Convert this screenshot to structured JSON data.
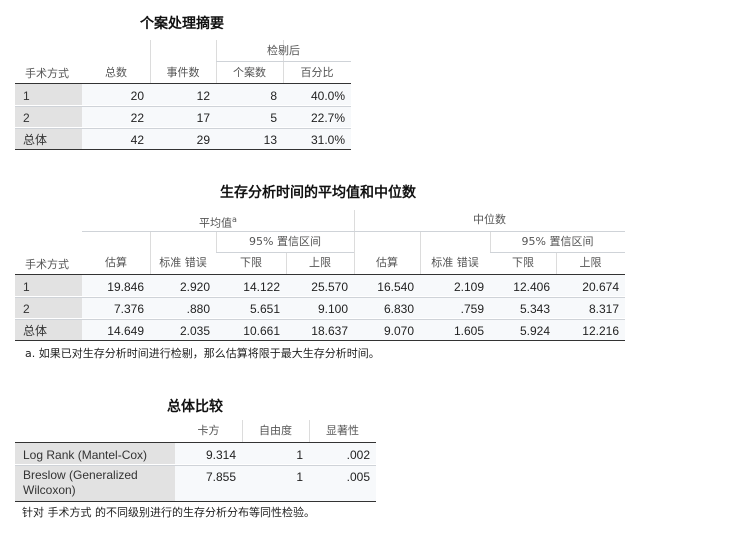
{
  "case_summary": {
    "title": "个案处理摘要",
    "group_header": "检剔后",
    "columns": [
      "手术方式",
      "总数",
      "事件数",
      "个案数",
      "百分比"
    ],
    "rows": [
      [
        "1",
        "20",
        "12",
        "8",
        "40.0%"
      ],
      [
        "2",
        "22",
        "17",
        "5",
        "22.7%"
      ],
      [
        "总体",
        "42",
        "29",
        "13",
        "31.0%"
      ]
    ]
  },
  "means_medians": {
    "title": "生存分析时间的平均值和中位数",
    "mean_header": "平均值",
    "mean_superscript": "a",
    "median_header": "中位数",
    "ci_header": "95% 置信区间",
    "columns": [
      "手术方式",
      "估算",
      "标准 错误",
      "下限",
      "上限",
      "估算",
      "标准 错误",
      "下限",
      "上限"
    ],
    "rows": [
      [
        "1",
        "19.846",
        "2.920",
        "14.122",
        "25.570",
        "16.540",
        "2.109",
        "12.406",
        "20.674"
      ],
      [
        "2",
        "7.376",
        ".880",
        "5.651",
        "9.100",
        "6.830",
        ".759",
        "5.343",
        "8.317"
      ],
      [
        "总体",
        "14.649",
        "2.035",
        "10.661",
        "18.637",
        "9.070",
        "1.605",
        "5.924",
        "12.216"
      ]
    ],
    "footnote": "a. 如果已对生存分析时间进行检剔，那么估算将限于最大生存分析时间。"
  },
  "overall_comparison": {
    "title": "总体比较",
    "columns": [
      "",
      "卡方",
      "自由度",
      "显著性"
    ],
    "rows": [
      [
        "Log Rank (Mantel-Cox)",
        "9.314",
        "1",
        ".002"
      ],
      [
        "Breslow (Generalized Wilcoxon)",
        "7.855",
        "1",
        ".005"
      ]
    ],
    "footnote": "针对 手术方式 的不同级别进行的生存分析分布等同性检验。"
  }
}
